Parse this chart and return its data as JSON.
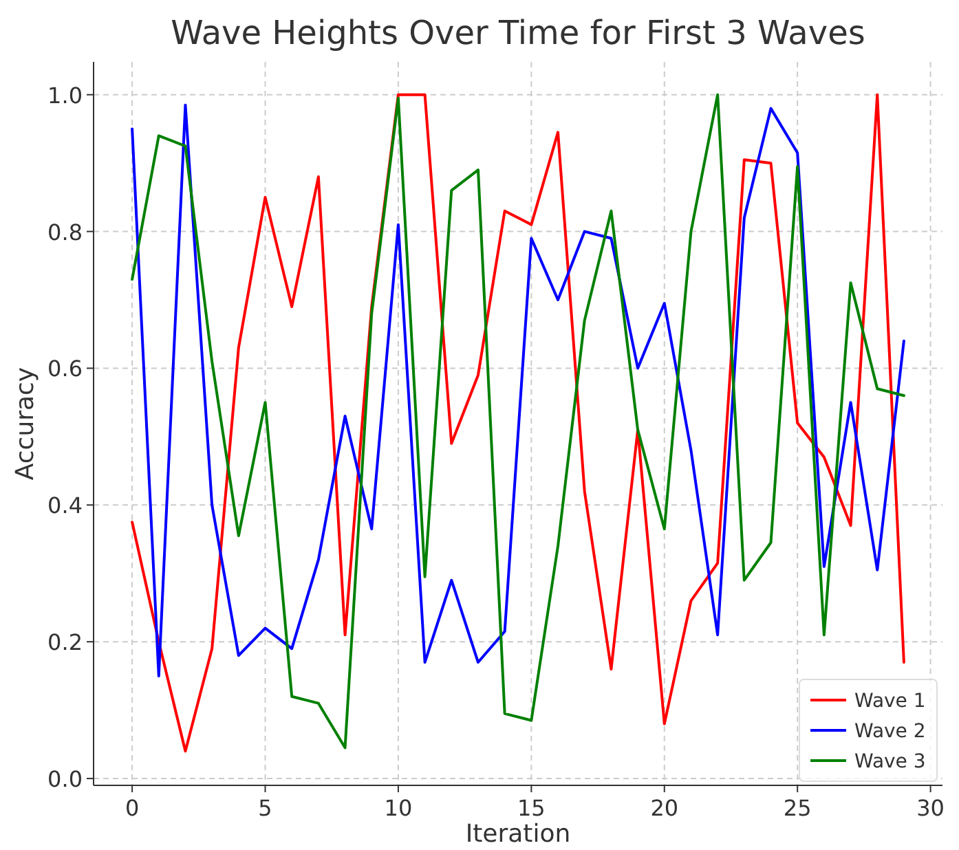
{
  "chart_data": {
    "type": "line",
    "title": "Wave Heights Over Time for First 3 Waves",
    "xlabel": "Iteration",
    "ylabel": "Accuracy",
    "x": [
      0,
      1,
      2,
      3,
      4,
      5,
      6,
      7,
      8,
      9,
      10,
      11,
      12,
      13,
      14,
      15,
      16,
      17,
      18,
      19,
      20,
      21,
      22,
      23,
      24,
      25,
      26,
      27,
      28,
      29
    ],
    "series": [
      {
        "name": "Wave 1",
        "color": "#ff0000",
        "values": [
          0.375,
          0.2,
          0.04,
          0.19,
          0.63,
          0.85,
          0.69,
          0.88,
          0.21,
          0.69,
          1.0,
          1.0,
          0.49,
          0.59,
          0.83,
          0.81,
          0.945,
          0.42,
          0.16,
          0.51,
          0.08,
          0.26,
          0.315,
          0.905,
          0.9,
          0.52,
          0.47,
          0.37,
          1.0,
          0.17
        ]
      },
      {
        "name": "Wave 2",
        "color": "#0000ff",
        "values": [
          0.95,
          0.15,
          0.985,
          0.4,
          0.18,
          0.22,
          0.19,
          0.32,
          0.53,
          0.365,
          0.81,
          0.17,
          0.29,
          0.17,
          0.215,
          0.79,
          0.7,
          0.8,
          0.79,
          0.6,
          0.695,
          0.48,
          0.21,
          0.82,
          0.98,
          0.915,
          0.31,
          0.55,
          0.305,
          0.64
        ]
      },
      {
        "name": "Wave 3",
        "color": "#008000",
        "values": [
          0.73,
          0.94,
          0.925,
          0.61,
          0.355,
          0.55,
          0.12,
          0.11,
          0.045,
          0.68,
          0.995,
          0.295,
          0.86,
          0.89,
          0.095,
          0.085,
          0.34,
          0.67,
          0.83,
          0.51,
          0.365,
          0.8,
          1.0,
          0.29,
          0.345,
          0.895,
          0.21,
          0.725,
          0.57,
          0.56
        ]
      }
    ],
    "xlim": [
      -1.45,
      30.45
    ],
    "ylim": [
      -0.01,
      1.048
    ],
    "xticks": [
      0,
      5,
      10,
      15,
      20,
      25,
      30
    ],
    "yticks": [
      {
        "value": 0,
        "label": "0.0"
      },
      {
        "value": 0.2,
        "label": "0.2"
      },
      {
        "value": 0.4,
        "label": "0.4"
      },
      {
        "value": 0.6,
        "label": "0.6"
      },
      {
        "value": 0.8,
        "label": "0.8"
      },
      {
        "value": 1,
        "label": "1.0"
      }
    ],
    "grid": true,
    "legend": "bottom right",
    "line_style": "solid",
    "marker": "none"
  }
}
